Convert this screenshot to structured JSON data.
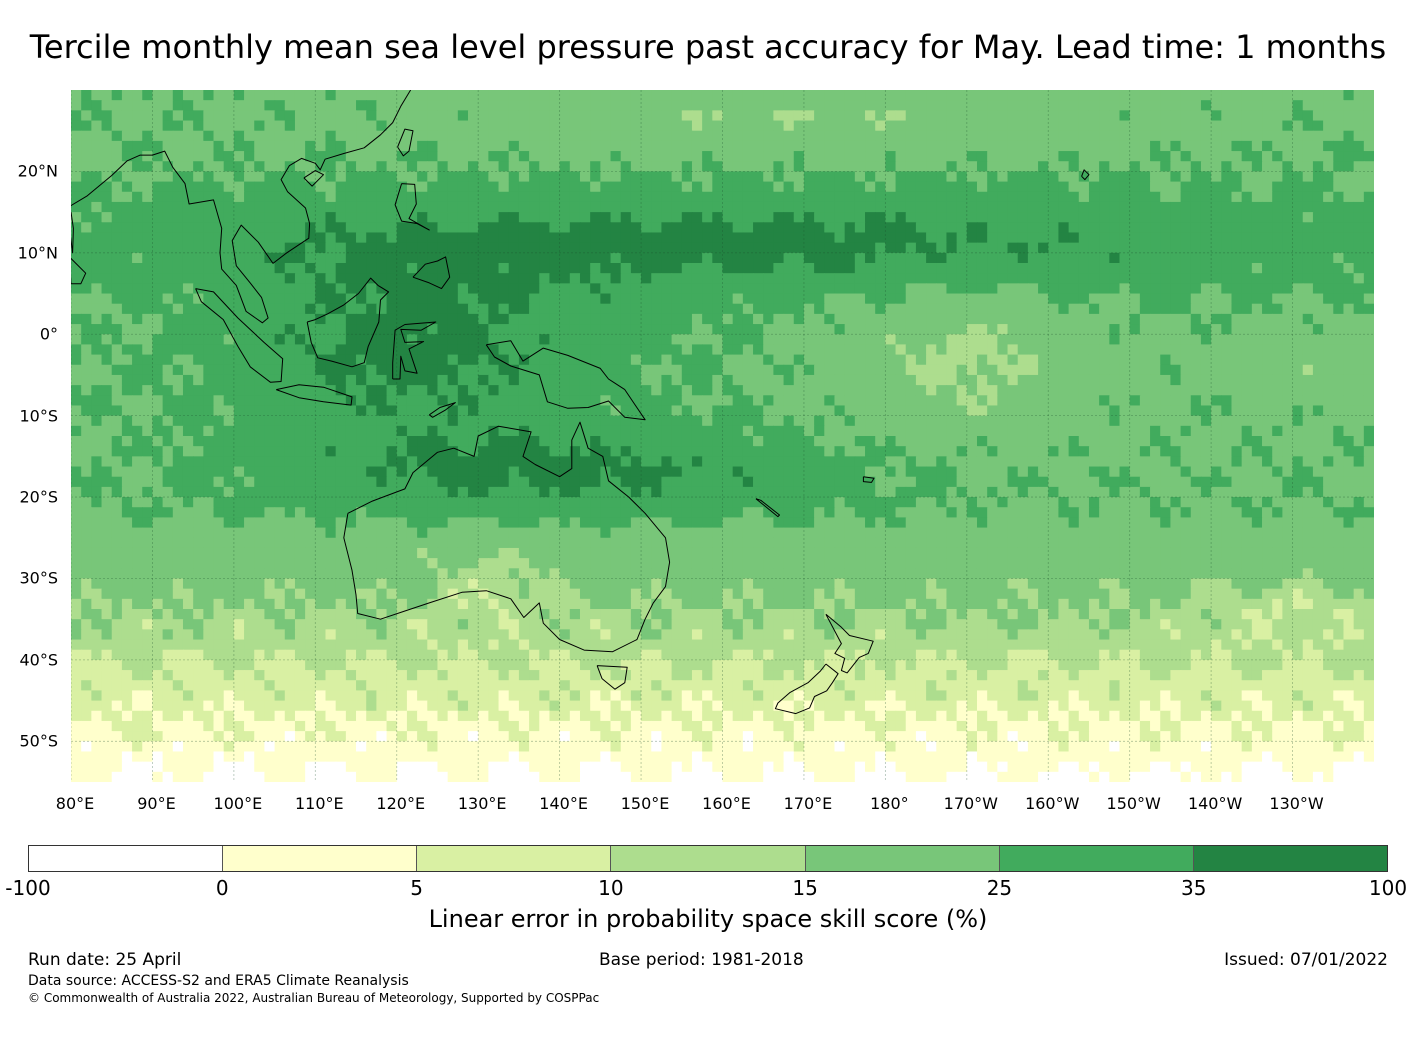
{
  "title": "Tercile monthly mean sea level pressure past accuracy for May. Lead time: 1 months",
  "map": {
    "extent": {
      "lon_min": 80,
      "lon_max": 240,
      "lat_min": -55,
      "lat_max": 30
    },
    "lat_ticks": [
      {
        "lat": 20,
        "label": "20°N"
      },
      {
        "lat": 10,
        "label": "10°N"
      },
      {
        "lat": 0,
        "label": "0°"
      },
      {
        "lat": -10,
        "label": "10°S"
      },
      {
        "lat": -20,
        "label": "20°S"
      },
      {
        "lat": -30,
        "label": "30°S"
      },
      {
        "lat": -40,
        "label": "40°S"
      },
      {
        "lat": -50,
        "label": "50°S"
      }
    ],
    "lon_ticks": [
      {
        "lon": 80,
        "label": "80°E"
      },
      {
        "lon": 90,
        "label": "90°E"
      },
      {
        "lon": 100,
        "label": "100°E"
      },
      {
        "lon": 110,
        "label": "110°E"
      },
      {
        "lon": 120,
        "label": "120°E"
      },
      {
        "lon": 130,
        "label": "130°E"
      },
      {
        "lon": 140,
        "label": "140°E"
      },
      {
        "lon": 150,
        "label": "150°E"
      },
      {
        "lon": 160,
        "label": "160°E"
      },
      {
        "lon": 170,
        "label": "170°E"
      },
      {
        "lon": 180,
        "label": "180°"
      },
      {
        "lon": 190,
        "label": "170°W"
      },
      {
        "lon": 200,
        "label": "160°W"
      },
      {
        "lon": 210,
        "label": "150°W"
      },
      {
        "lon": 220,
        "label": "140°W"
      },
      {
        "lon": 230,
        "label": "130°W"
      }
    ],
    "grid": true,
    "coastlines": true
  },
  "colorbar": {
    "bins": [
      {
        "from": -100,
        "to": 0,
        "color": "#ffffff"
      },
      {
        "from": 0,
        "to": 5,
        "color": "#ffffcc"
      },
      {
        "from": 5,
        "to": 10,
        "color": "#d9f0a3"
      },
      {
        "from": 10,
        "to": 15,
        "color": "#addd8e"
      },
      {
        "from": 15,
        "to": 25,
        "color": "#78c679"
      },
      {
        "from": 25,
        "to": 35,
        "color": "#41ab5d"
      },
      {
        "from": 35,
        "to": 100,
        "color": "#238443"
      }
    ],
    "tick_labels": [
      "-100",
      "0",
      "5",
      "10",
      "15",
      "25",
      "35",
      "100"
    ],
    "label": "Linear error in probability space skill score (%)"
  },
  "footer": {
    "run_date": "Run date: 25 April",
    "base_period": "Base period: 1981-2018",
    "issued": "Issued: 07/01/2022",
    "data_source": "Data source: ACCESS-S2 and ERA5 Climate Reanalysis",
    "copyright": "© Commonwealth of Australia 2022, Australian Bureau of Meteorology, Supported by COSPPac"
  }
}
